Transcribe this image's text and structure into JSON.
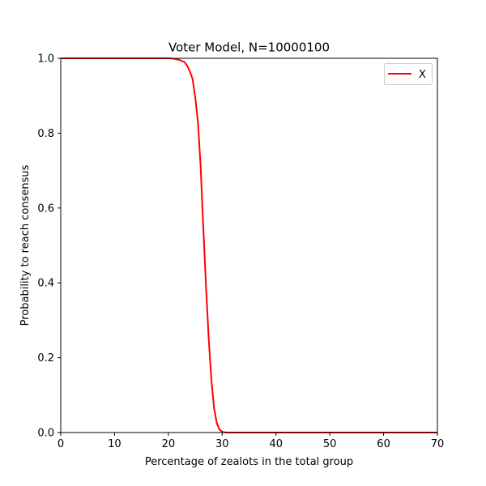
{
  "chart_data": {
    "type": "line",
    "title": "Voter Model, N=10000100",
    "xlabel": "Percentage of zealots in the total group",
    "ylabel": "Probability to reach consensus",
    "xlim": [
      0,
      70
    ],
    "ylim": [
      0,
      1.0
    ],
    "xticks": [
      0,
      10,
      20,
      30,
      40,
      50,
      60,
      70
    ],
    "xtick_labels": [
      "0",
      "10",
      "20",
      "30",
      "40",
      "50",
      "60",
      "70"
    ],
    "yticks": [
      0,
      0.2,
      0.4,
      0.6,
      0.8,
      1.0
    ],
    "ytick_labels": [
      "0.0",
      "0.2",
      "0.4",
      "0.6",
      "0.8",
      "1.0"
    ],
    "grid": false,
    "legend_position": "top-right",
    "series": [
      {
        "name": "X",
        "color": "#ff0000",
        "x": [
          0,
          5,
          10,
          15,
          20,
          21,
          22,
          23,
          23.5,
          24,
          24.5,
          25,
          25.5,
          26,
          26.5,
          27,
          27.5,
          28,
          28.5,
          29,
          29.5,
          30,
          30.5,
          31,
          31.5,
          32,
          33,
          35,
          40,
          50,
          60,
          70
        ],
        "y": [
          1.0,
          1.0,
          1.0,
          1.0,
          1.0,
          0.999,
          0.996,
          0.99,
          0.98,
          0.965,
          0.945,
          0.895,
          0.83,
          0.71,
          0.545,
          0.39,
          0.25,
          0.14,
          0.065,
          0.025,
          0.008,
          0.002,
          0.0005,
          0.0,
          0.0,
          0.0,
          0.0,
          0.0,
          0.0,
          0.0,
          0.0,
          0.0
        ]
      }
    ]
  }
}
